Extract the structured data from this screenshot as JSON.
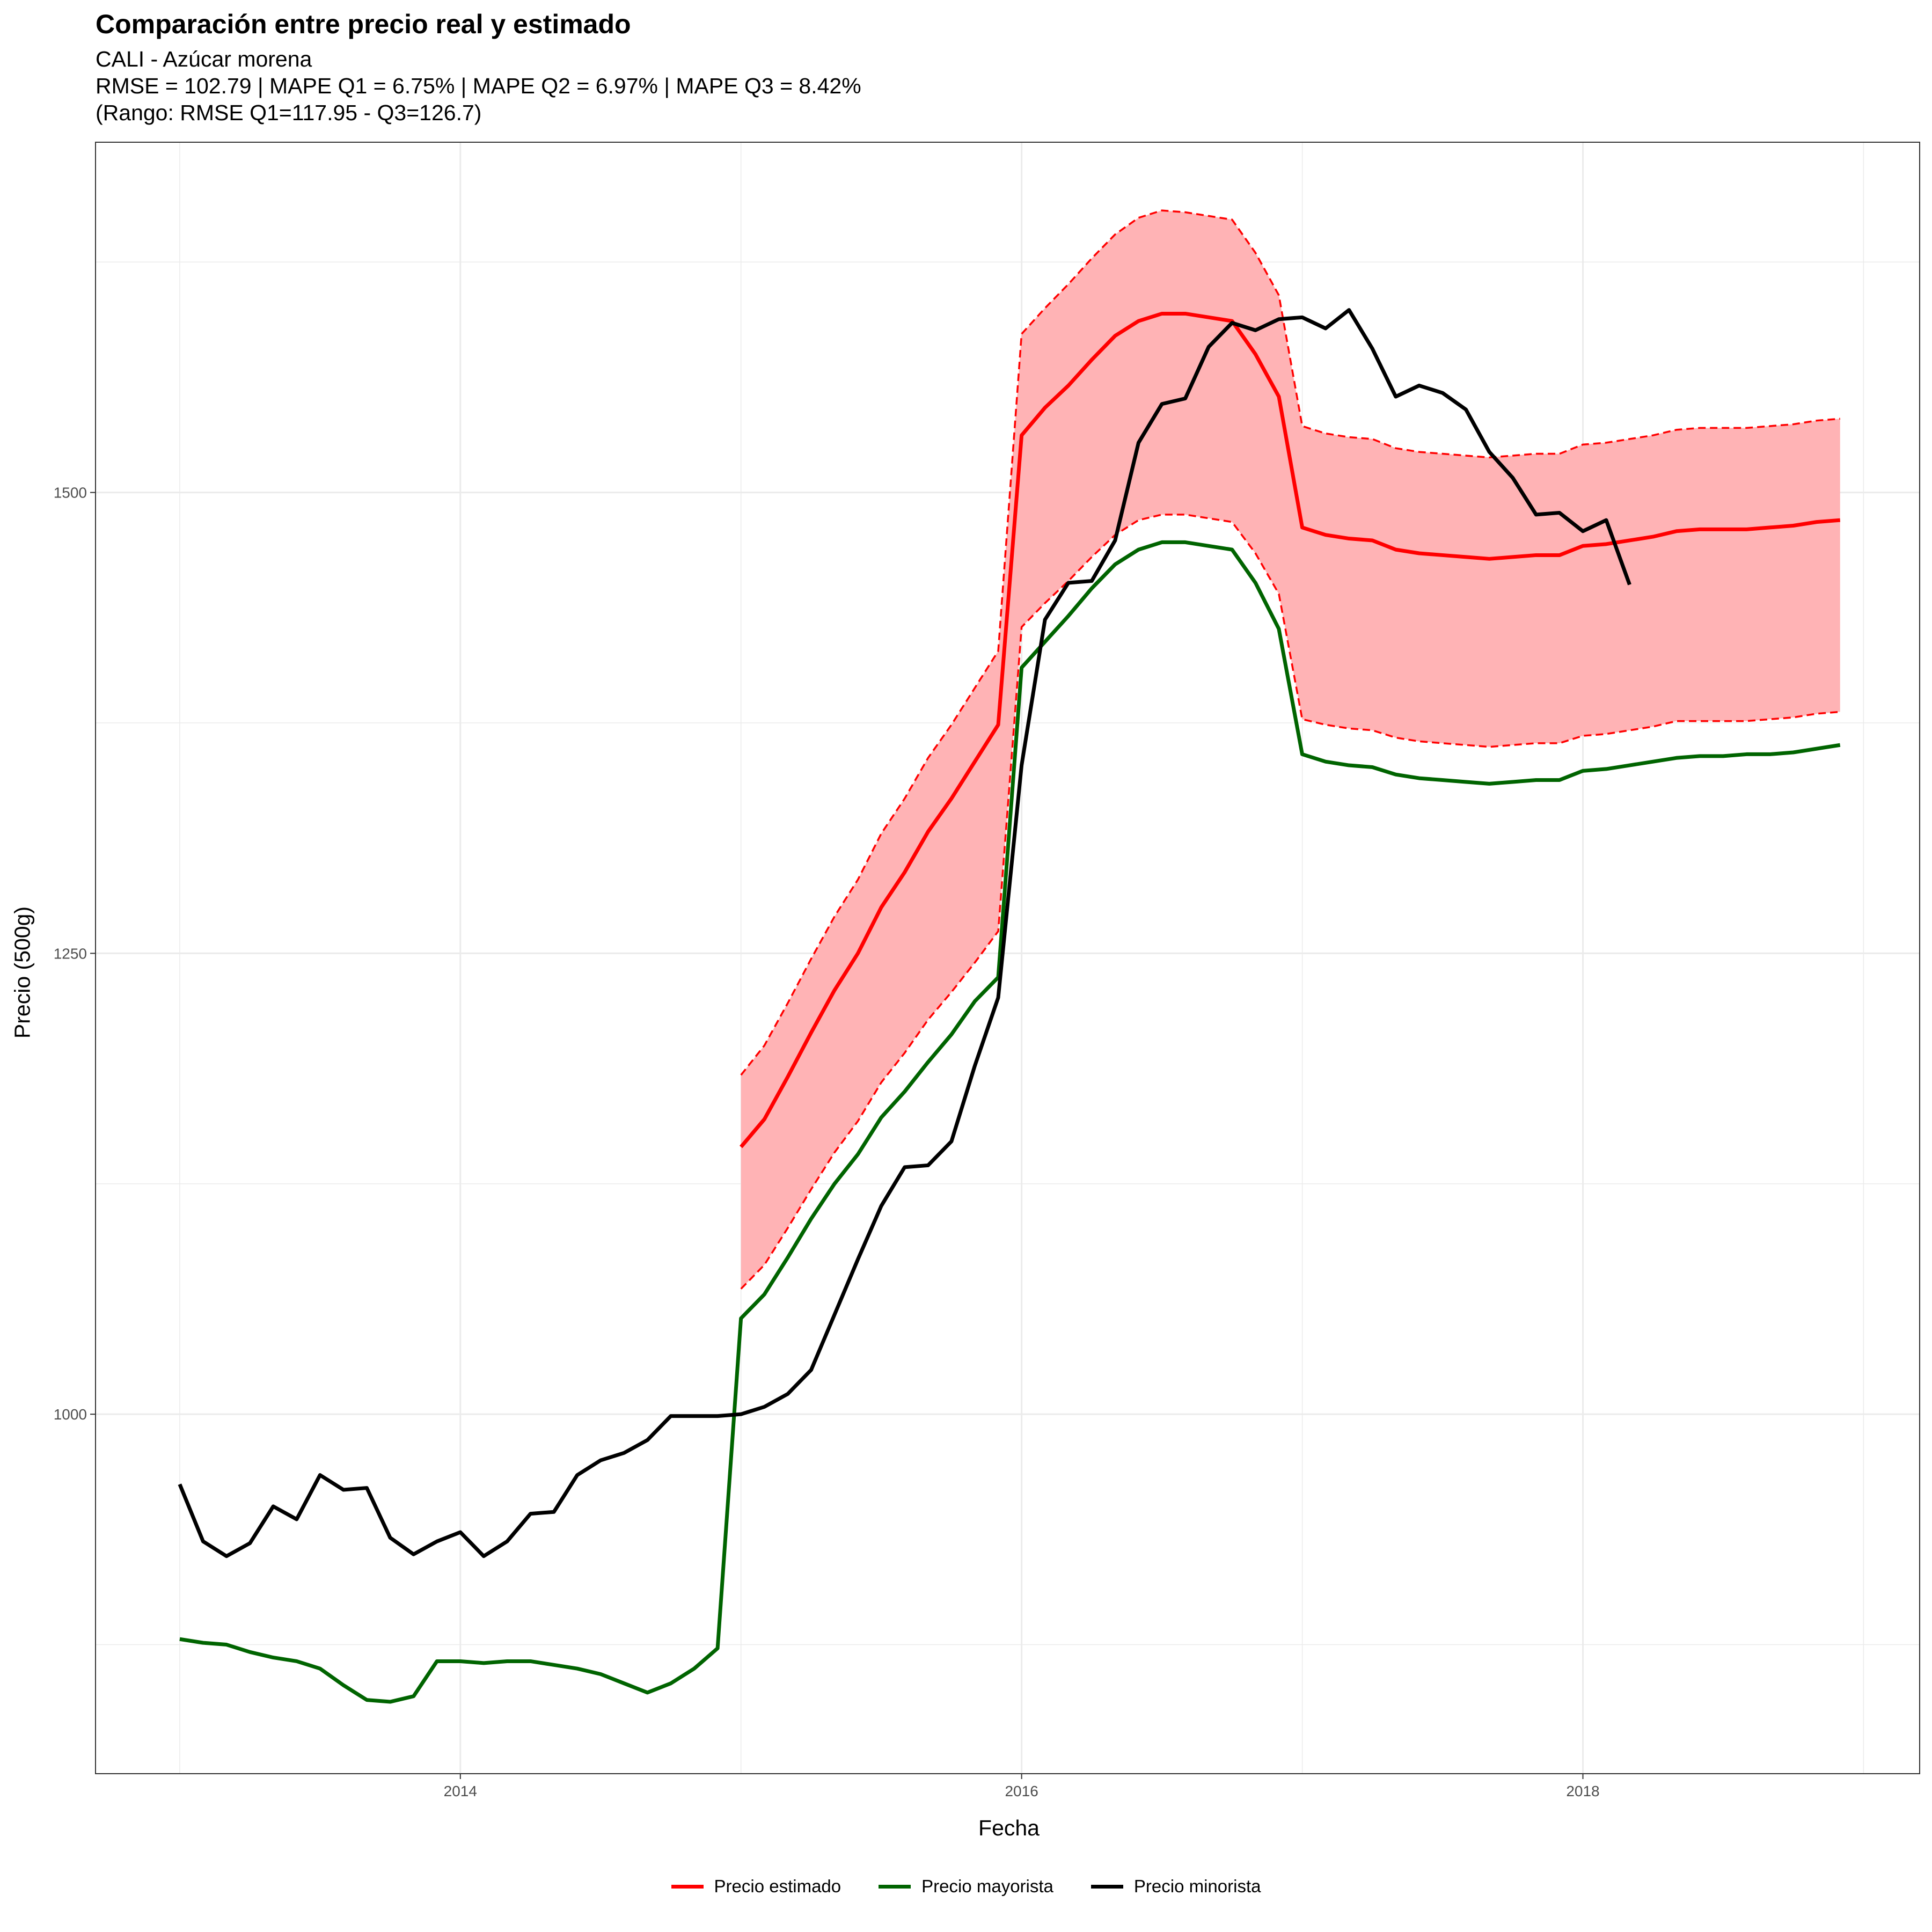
{
  "chart_data": {
    "type": "line",
    "title": "Comparación entre precio real y estimado",
    "subtitle_lines": [
      "CALI - Azúcar morena",
      "RMSE = 102.79 | MAPE Q1 = 6.75% | MAPE Q2 = 6.97% | MAPE Q3 = 8.42%",
      "(Rango: RMSE Q1=117.95 - Q3=126.7)"
    ],
    "xlabel": "Fecha",
    "ylabel": "Precio (500g)",
    "xlim": [
      2012.7,
      2019.2
    ],
    "ylim": [
      805,
      1690
    ],
    "x_ticks": [
      2014,
      2016,
      2018
    ],
    "x_tick_labels": [
      "2014",
      "2016",
      "2018"
    ],
    "y_ticks": [
      1000,
      1250,
      1500
    ],
    "y_tick_labels": [
      "1000",
      "1250",
      "1500"
    ],
    "grid": true,
    "legend_position": "bottom",
    "series": [
      {
        "name": "Precio minorista",
        "color": "#000000",
        "start": 2013.0,
        "step": 0.08333,
        "values": [
          962,
          931,
          923,
          930,
          950,
          943,
          967,
          959,
          960,
          933,
          924,
          931,
          936,
          923,
          931,
          946,
          947,
          967,
          975,
          979,
          986,
          999,
          999,
          999,
          1000,
          1004,
          1011,
          1024,
          1054,
          1084,
          1113,
          1134,
          1135,
          1148,
          1189,
          1226,
          1352,
          1431,
          1451,
          1452,
          1474,
          1527,
          1548,
          1551,
          1579,
          1592,
          1588,
          1594,
          1595,
          1589,
          1599,
          1578,
          1552,
          1558,
          1554,
          1545,
          1522,
          1508,
          1488,
          1489,
          1479,
          1485,
          1450
        ]
      },
      {
        "name": "Precio mayorista",
        "color": "#006400",
        "start": 2013.0,
        "step": 0.08333,
        "values": [
          878,
          876,
          875,
          871,
          868,
          866,
          862,
          853,
          845,
          844,
          847,
          866,
          866,
          865,
          866,
          866,
          864,
          862,
          859,
          854,
          849,
          854,
          862,
          873,
          1052,
          1065,
          1085,
          1106,
          1125,
          1141,
          1161,
          1175,
          1191,
          1206,
          1224,
          1237,
          1405,
          1419,
          1433,
          1448,
          1461,
          1469,
          1473,
          1473,
          1471,
          1469,
          1451,
          1426,
          1358,
          1354,
          1352,
          1351,
          1347,
          1345,
          1344,
          1343,
          1342,
          1343,
          1344,
          1344,
          1349,
          1350,
          1352,
          1354,
          1356,
          1357,
          1357,
          1358,
          1358,
          1359,
          1361,
          1363
        ]
      },
      {
        "name": "Precio estimado",
        "color": "#ff0000",
        "start": 2015.0,
        "step": 0.08333,
        "values": [
          1145,
          1160,
          1183,
          1207,
          1230,
          1250,
          1275,
          1294,
          1316,
          1334,
          1354,
          1374,
          1531,
          1546,
          1558,
          1572,
          1585,
          1593,
          1597,
          1597,
          1595,
          1593,
          1575,
          1552,
          1481,
          1477,
          1475,
          1474,
          1469,
          1467,
          1466,
          1465,
          1464,
          1465,
          1466,
          1466,
          1471,
          1472,
          1474,
          1476,
          1479,
          1480,
          1480,
          1480,
          1481,
          1482,
          1484,
          1485
        ]
      }
    ],
    "band": {
      "color": "#ffb3b5",
      "border_color": "#ff0000",
      "start": 2015.0,
      "step": 0.08333,
      "upper": [
        1184,
        1200,
        1223,
        1247,
        1270,
        1290,
        1315,
        1334,
        1356,
        1374,
        1394,
        1414,
        1586,
        1600,
        1613,
        1627,
        1640,
        1649,
        1653,
        1652,
        1650,
        1648,
        1630,
        1607,
        1536,
        1532,
        1530,
        1529,
        1524,
        1522,
        1521,
        1520,
        1519,
        1520,
        1521,
        1521,
        1526,
        1527,
        1529,
        1531,
        1534,
        1535,
        1535,
        1535,
        1536,
        1537,
        1539,
        1540
      ],
      "lower": [
        1068,
        1081,
        1101,
        1122,
        1142,
        1159,
        1180,
        1196,
        1214,
        1229,
        1245,
        1262,
        1427,
        1440,
        1452,
        1465,
        1477,
        1485,
        1488,
        1488,
        1486,
        1484,
        1467,
        1445,
        1377,
        1374,
        1372,
        1371,
        1367,
        1365,
        1364,
        1363,
        1362,
        1363,
        1364,
        1364,
        1368,
        1369,
        1371,
        1373,
        1376,
        1376,
        1376,
        1376,
        1377,
        1378,
        1380,
        1381
      ]
    }
  }
}
